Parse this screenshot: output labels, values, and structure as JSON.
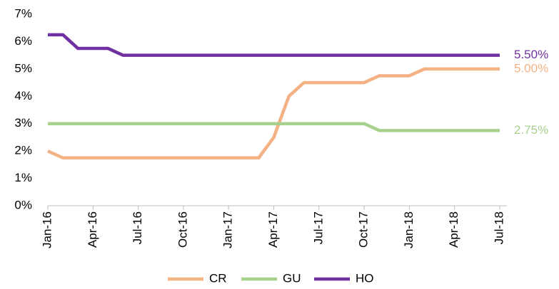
{
  "chart_data": {
    "type": "line",
    "categories": [
      "Jan-16",
      null,
      null,
      "Apr-16",
      null,
      null,
      "Jul-16",
      null,
      null,
      "Oct-16",
      null,
      null,
      "Jan-17",
      null,
      null,
      "Apr-17",
      null,
      null,
      "Jul-17",
      null,
      null,
      "Oct-17",
      null,
      null,
      "Jan-18",
      null,
      null,
      "Apr-18",
      null,
      null,
      "Jul-18"
    ],
    "series": [
      {
        "name": "CR",
        "color": "#f4b183",
        "values": [
          2.0,
          1.75,
          1.75,
          1.75,
          1.75,
          1.75,
          1.75,
          1.75,
          1.75,
          1.75,
          1.75,
          1.75,
          1.75,
          1.75,
          1.75,
          2.5,
          4.0,
          4.5,
          4.5,
          4.5,
          4.5,
          4.5,
          4.75,
          4.75,
          4.75,
          5.0,
          5.0,
          5.0,
          5.0,
          5.0,
          5.0
        ],
        "value_labels": [
          null,
          null,
          null,
          null,
          null,
          null,
          null,
          null,
          null,
          null,
          null,
          null,
          null,
          null,
          null,
          null,
          null,
          null,
          null,
          null,
          null,
          null,
          null,
          null,
          null,
          null,
          null,
          null,
          null,
          null,
          "5.00%"
        ]
      },
      {
        "name": "GU",
        "color": "#a9d18e",
        "values": [
          3.0,
          3.0,
          3.0,
          3.0,
          3.0,
          3.0,
          3.0,
          3.0,
          3.0,
          3.0,
          3.0,
          3.0,
          3.0,
          3.0,
          3.0,
          3.0,
          3.0,
          3.0,
          3.0,
          3.0,
          3.0,
          3.0,
          2.75,
          2.75,
          2.75,
          2.75,
          2.75,
          2.75,
          2.75,
          2.75,
          2.75
        ],
        "value_labels": [
          null,
          null,
          null,
          null,
          null,
          null,
          null,
          null,
          null,
          null,
          null,
          null,
          null,
          null,
          null,
          null,
          null,
          null,
          null,
          null,
          null,
          null,
          null,
          null,
          null,
          null,
          null,
          null,
          null,
          null,
          "2.75%"
        ]
      },
      {
        "name": "HO",
        "color": "#7030a0",
        "values": [
          6.25,
          6.25,
          5.75,
          5.75,
          5.75,
          5.5,
          5.5,
          5.5,
          5.5,
          5.5,
          5.5,
          5.5,
          5.5,
          5.5,
          5.5,
          5.5,
          5.5,
          5.5,
          5.5,
          5.5,
          5.5,
          5.5,
          5.5,
          5.5,
          5.5,
          5.5,
          5.5,
          5.5,
          5.5,
          5.5,
          5.5
        ],
        "value_labels": [
          null,
          null,
          null,
          null,
          null,
          null,
          null,
          null,
          null,
          null,
          null,
          null,
          null,
          null,
          null,
          null,
          null,
          null,
          null,
          null,
          null,
          null,
          null,
          null,
          null,
          null,
          null,
          null,
          null,
          null,
          "5.50%"
        ]
      }
    ],
    "ylim": [
      0,
      7
    ],
    "yticks": [
      {
        "value": 0,
        "label": "0%"
      },
      {
        "value": 1,
        "label": "1%"
      },
      {
        "value": 2,
        "label": "2%"
      },
      {
        "value": 3,
        "label": "3%"
      },
      {
        "value": 4,
        "label": "4%"
      },
      {
        "value": 5,
        "label": "5%"
      },
      {
        "value": 6,
        "label": "6%"
      },
      {
        "value": 7,
        "label": "7%"
      }
    ],
    "grid": false,
    "legend": "bottom"
  }
}
